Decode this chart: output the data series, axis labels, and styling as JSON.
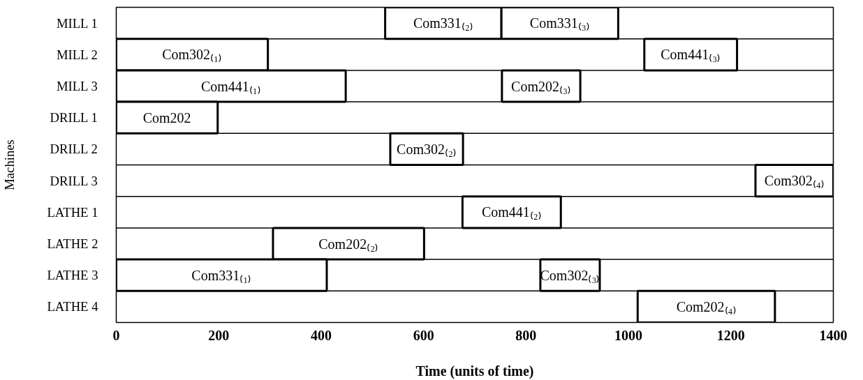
{
  "chart_data": {
    "type": "bar",
    "orientation": "horizontal",
    "xlabel": "Time (units of time)",
    "ylabel": "Machines",
    "categories": [
      "MILL 1",
      "MILL 2",
      "MILL 3",
      "DRILL 1",
      "DRILL 2",
      "DRILL 3",
      "LATHE 1",
      "LATHE 2",
      "LATHE 3",
      "LATHE 4"
    ],
    "series": [
      {
        "color": "#ffffff",
        "base": [
          525,
          0,
          0,
          0,
          535,
          1248,
          676,
          306,
          0,
          1018
        ],
        "values": [
          227,
          296,
          448,
          198,
          142,
          152,
          192,
          295,
          411,
          268
        ],
        "value_labels": [
          "Com331₍₂₎",
          "Com302₍₁₎",
          "Com441₍₁₎",
          "Com202",
          "Com302₍₂₎",
          "Com302₍₄₎",
          "Com441₍₂₎",
          "Com202₍₂₎",
          "Com331₍₁₎",
          "Com202₍₄₎"
        ]
      },
      {
        "color": "#ffffff",
        "base": [
          752,
          1031,
          753,
          null,
          null,
          null,
          null,
          null,
          828,
          null
        ],
        "values": [
          228,
          181,
          153,
          null,
          null,
          null,
          null,
          null,
          116,
          null
        ],
        "value_labels": [
          "Com331₍₃₎",
          "Com441₍₃₎",
          "Com202₍₃₎",
          null,
          null,
          null,
          null,
          null,
          "Com302₍₃₎",
          null
        ]
      }
    ],
    "xlim": [
      0,
      1400
    ],
    "xticks": [
      0,
      200,
      400,
      600,
      800,
      1000,
      1200,
      1400
    ],
    "grid": "y"
  }
}
